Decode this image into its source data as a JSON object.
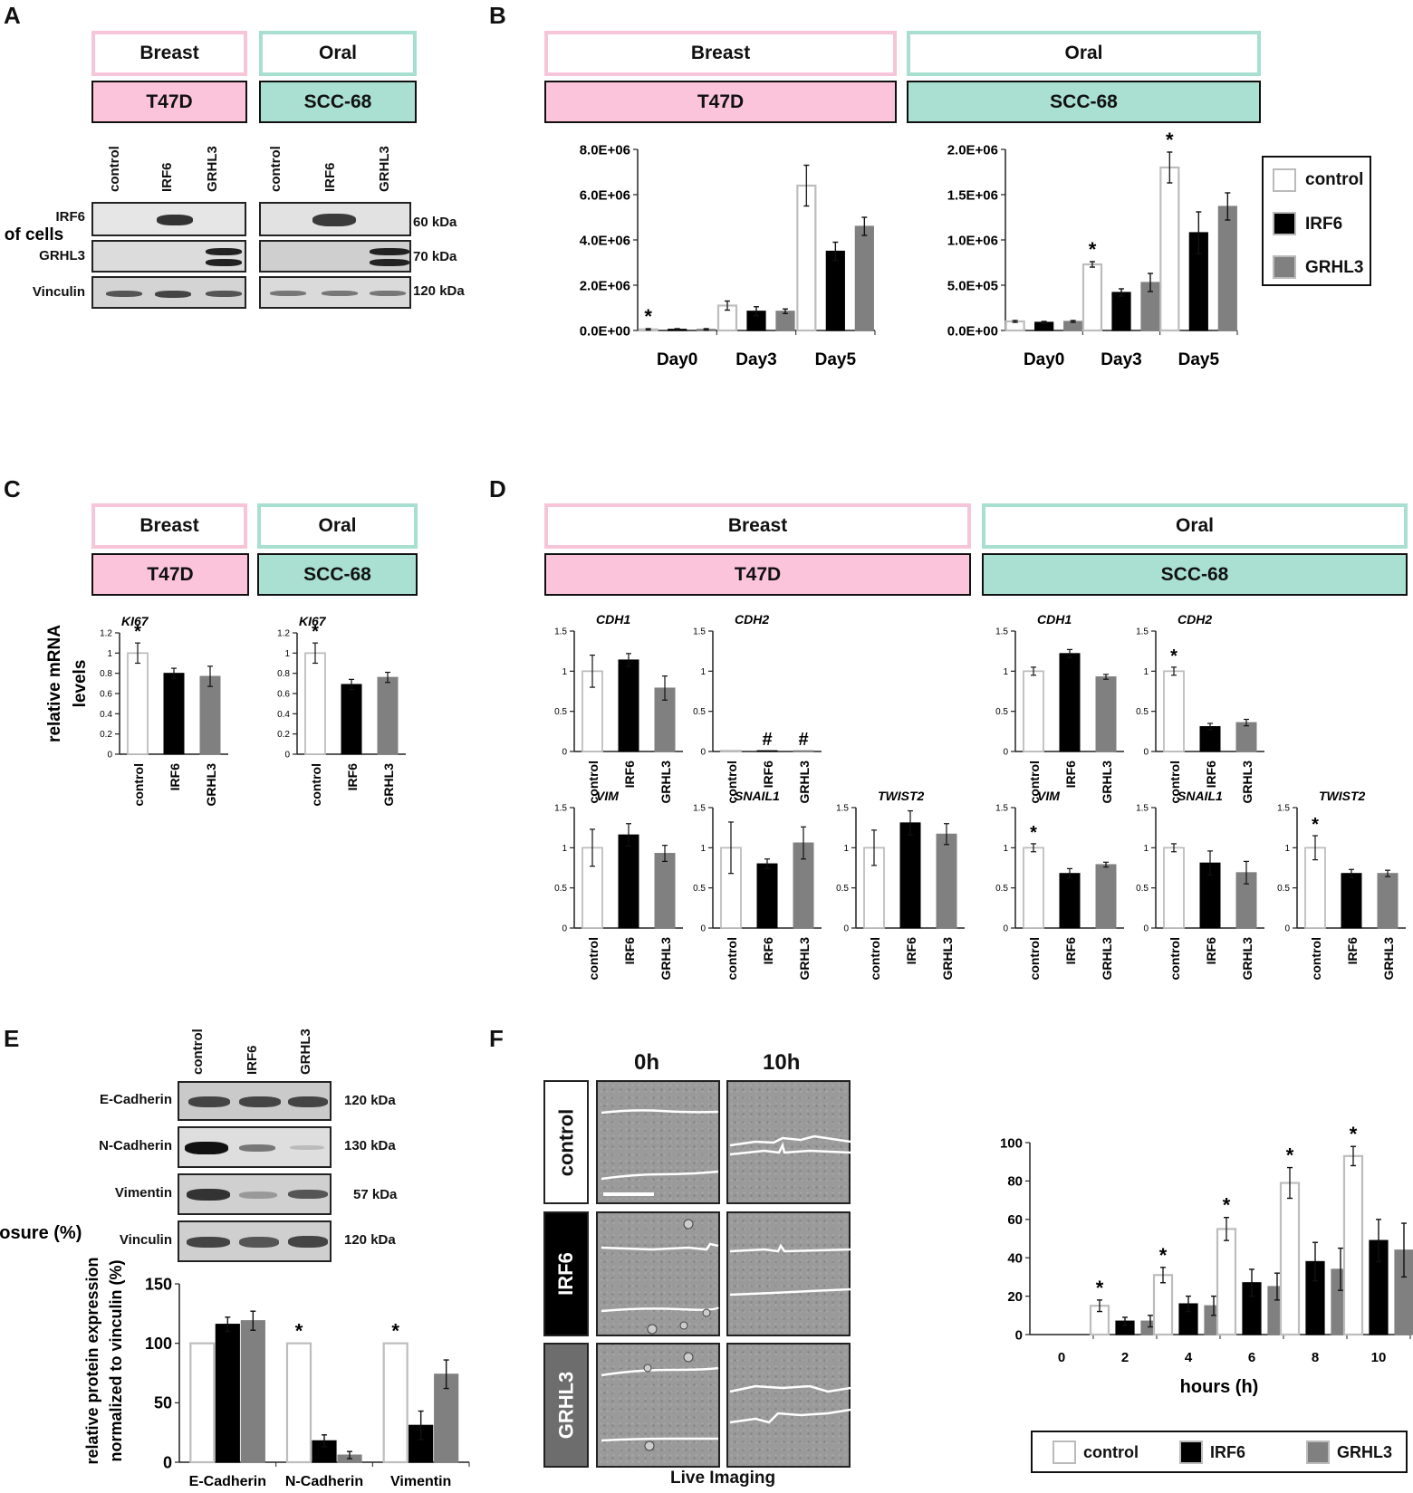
{
  "panels": {
    "A": "A",
    "B": "B",
    "C": "C",
    "D": "D",
    "E": "E",
    "F": "F"
  },
  "groups": {
    "breast": "Breast",
    "oral": "Oral",
    "t47d": "T47D",
    "scc68": "SCC-68"
  },
  "conditions": [
    "control",
    "IRF6",
    "GRHL3"
  ],
  "colors": {
    "control": "#ffffff",
    "IRF6": "#000000",
    "GRHL3": "#808080",
    "pink": "#fbc4da",
    "teal": "#a9e0d1"
  },
  "blotA": {
    "rows": [
      "IRF6",
      "GRHL3",
      "Vinculin"
    ],
    "kda": [
      "60 kDa",
      "70 kDa",
      "120 kDa"
    ]
  },
  "blotE": {
    "rows": [
      "E-Cadherin",
      "N-Cadherin",
      "Vimentin",
      "Vinculin"
    ],
    "kda": [
      "120 kDa",
      "130 kDa",
      "57 kDa",
      "120 kDa"
    ]
  },
  "legend": {
    "control": "control",
    "IRF6": "IRF6",
    "GRHL3": "GRHL3"
  },
  "panelF": {
    "t0": "0h",
    "t10": "10h",
    "caption": "Live Imaging"
  },
  "chart_data": [
    {
      "id": "B-breast",
      "type": "bar",
      "categories": [
        "Day0",
        "Day3",
        "Day5"
      ],
      "ylabel": "number of cells",
      "ylim": [
        0,
        8000000
      ],
      "yticks": [
        "0.0E+00",
        "2.0E+06",
        "4.0E+06",
        "6.0E+06",
        "8.0E+06"
      ],
      "series": [
        {
          "name": "control",
          "values": [
            50000,
            1100000,
            6400000
          ],
          "err": [
            30000,
            200000,
            900000
          ]
        },
        {
          "name": "IRF6",
          "values": [
            50000,
            850000,
            3500000
          ],
          "err": [
            30000,
            200000,
            400000
          ]
        },
        {
          "name": "GRHL3",
          "values": [
            50000,
            850000,
            4600000
          ],
          "err": [
            30000,
            100000,
            400000
          ]
        }
      ],
      "annotations": [
        "*",
        "",
        ""
      ]
    },
    {
      "id": "B-oral",
      "type": "bar",
      "categories": [
        "Day0",
        "Day3",
        "Day5"
      ],
      "ylim": [
        0,
        2000000
      ],
      "yticks": [
        "0.0E+00",
        "5.0E+05",
        "1.0E+06",
        "1.5E+06",
        "2.0E+06"
      ],
      "series": [
        {
          "name": "control",
          "values": [
            100000,
            730000,
            1800000
          ],
          "err": [
            10000,
            30000,
            170000
          ]
        },
        {
          "name": "IRF6",
          "values": [
            90000,
            420000,
            1080000
          ],
          "err": [
            10000,
            40000,
            230000
          ]
        },
        {
          "name": "GRHL3",
          "values": [
            100000,
            530000,
            1370000
          ],
          "err": [
            10000,
            100000,
            150000
          ]
        }
      ],
      "annotations": [
        "",
        "*",
        "*"
      ]
    },
    {
      "id": "C-breast",
      "type": "bar",
      "title": "KI67",
      "ylabel": "relative mRNA levels",
      "ylim": [
        0,
        1.2
      ],
      "yticks": [
        "0",
        "0.2",
        "0.4",
        "0.6",
        "0.8",
        "1",
        "1.2"
      ],
      "categories": [
        "control",
        "IRF6",
        "GRHL3"
      ],
      "values": [
        1.0,
        0.8,
        0.77
      ],
      "err": [
        0.1,
        0.05,
        0.1
      ],
      "annotations": [
        "*",
        "",
        ""
      ]
    },
    {
      "id": "C-oral",
      "type": "bar",
      "title": "KI67",
      "ylim": [
        0,
        1.2
      ],
      "yticks": [
        "0",
        "0.2",
        "0.4",
        "0.6",
        "0.8",
        "1",
        "1.2"
      ],
      "categories": [
        "control",
        "IRF6",
        "GRHL3"
      ],
      "values": [
        1.0,
        0.69,
        0.76
      ],
      "err": [
        0.1,
        0.05,
        0.05
      ],
      "annotations": [
        "*",
        "",
        ""
      ]
    },
    {
      "id": "D-breast-CDH1",
      "type": "bar",
      "title": "CDH1",
      "ylim": [
        0,
        1.5
      ],
      "yticks": [
        "0",
        "0.5",
        "1",
        "1.5"
      ],
      "categories": [
        "control",
        "IRF6",
        "GRHL3"
      ],
      "values": [
        1.0,
        1.14,
        0.79
      ],
      "err": [
        0.2,
        0.08,
        0.15
      ],
      "annotations": [
        "",
        "",
        ""
      ]
    },
    {
      "id": "D-breast-CDH2",
      "type": "bar",
      "title": "CDH2",
      "ylim": [
        0,
        1.5
      ],
      "yticks": [
        "0",
        "0.5",
        "1",
        "1.5"
      ],
      "categories": [
        "control",
        "IRF6",
        "GRHL3"
      ],
      "values": [
        0.01,
        0.01,
        0.01
      ],
      "err": [
        0,
        0,
        0
      ],
      "annotations": [
        "",
        "#",
        "#"
      ]
    },
    {
      "id": "D-oral-CDH1",
      "type": "bar",
      "title": "CDH1",
      "ylim": [
        0,
        1.5
      ],
      "yticks": [
        "0",
        "0.5",
        "1",
        "1.5"
      ],
      "categories": [
        "control",
        "IRF6",
        "GRHL3"
      ],
      "values": [
        1.0,
        1.22,
        0.93
      ],
      "err": [
        0.05,
        0.05,
        0.03
      ],
      "annotations": [
        "",
        "",
        ""
      ]
    },
    {
      "id": "D-oral-CDH2",
      "type": "bar",
      "title": "CDH2",
      "ylim": [
        0,
        1.5
      ],
      "yticks": [
        "0",
        "0.5",
        "1",
        "1.5"
      ],
      "categories": [
        "control",
        "IRF6",
        "GRHL3"
      ],
      "values": [
        1.0,
        0.31,
        0.36
      ],
      "err": [
        0.05,
        0.04,
        0.04
      ],
      "annotations": [
        "*",
        "",
        ""
      ]
    },
    {
      "id": "D-breast-VIM",
      "type": "bar",
      "title": "VIM",
      "ylim": [
        0,
        1.5
      ],
      "yticks": [
        "0",
        "0.5",
        "1",
        "1.5"
      ],
      "categories": [
        "control",
        "IRF6",
        "GRHL3"
      ],
      "values": [
        1.0,
        1.16,
        0.93
      ],
      "err": [
        0.23,
        0.14,
        0.1
      ],
      "annotations": [
        "",
        "",
        ""
      ]
    },
    {
      "id": "D-breast-SNAIL1",
      "type": "bar",
      "title": "SNAIL1",
      "ylim": [
        0,
        1.5
      ],
      "yticks": [
        "0",
        "0.5",
        "1",
        "1.5"
      ],
      "categories": [
        "control",
        "IRF6",
        "GRHL3"
      ],
      "values": [
        1.0,
        0.8,
        1.06
      ],
      "err": [
        0.32,
        0.06,
        0.2
      ],
      "annotations": [
        "",
        "",
        ""
      ]
    },
    {
      "id": "D-breast-TWIST2",
      "type": "bar",
      "title": "TWIST2",
      "ylim": [
        0,
        1.5
      ],
      "yticks": [
        "0",
        "0.5",
        "1",
        "1.5"
      ],
      "categories": [
        "control",
        "IRF6",
        "GRHL3"
      ],
      "values": [
        1.0,
        1.31,
        1.17
      ],
      "err": [
        0.22,
        0.15,
        0.13
      ],
      "annotations": [
        "",
        "",
        ""
      ]
    },
    {
      "id": "D-oral-VIM",
      "type": "bar",
      "title": "VIM",
      "ylim": [
        0,
        1.5
      ],
      "yticks": [
        "0",
        "0.5",
        "1",
        "1.5"
      ],
      "categories": [
        "control",
        "IRF6",
        "GRHL3"
      ],
      "values": [
        1.0,
        0.68,
        0.79
      ],
      "err": [
        0.05,
        0.06,
        0.03
      ],
      "annotations": [
        "*",
        "",
        ""
      ]
    },
    {
      "id": "D-oral-SNAIL1",
      "type": "bar",
      "title": "SNAIL1",
      "ylim": [
        0,
        1.5
      ],
      "yticks": [
        "0",
        "0.5",
        "1",
        "1.5"
      ],
      "categories": [
        "control",
        "IRF6",
        "GRHL3"
      ],
      "values": [
        1.0,
        0.81,
        0.69
      ],
      "err": [
        0.05,
        0.15,
        0.14
      ],
      "annotations": [
        "",
        "",
        ""
      ]
    },
    {
      "id": "D-oral-TWIST2",
      "type": "bar",
      "title": "TWIST2",
      "ylim": [
        0,
        1.5
      ],
      "yticks": [
        "0",
        "0.5",
        "1",
        "1.5"
      ],
      "categories": [
        "control",
        "IRF6",
        "GRHL3"
      ],
      "values": [
        1.0,
        0.68,
        0.68
      ],
      "err": [
        0.15,
        0.05,
        0.04
      ],
      "annotations": [
        "*",
        "",
        ""
      ]
    },
    {
      "id": "E-quant",
      "type": "bar",
      "ylabel": "relative protein expression normalized to vinculin (%)",
      "ylim": [
        0,
        150
      ],
      "yticks": [
        "0",
        "50",
        "100",
        "150"
      ],
      "categories": [
        "E-Cadherin",
        "N-Cadherin",
        "Vimentin"
      ],
      "series": [
        {
          "name": "control",
          "values": [
            100,
            100,
            100
          ],
          "err": [
            0,
            0,
            0
          ]
        },
        {
          "name": "IRF6",
          "values": [
            116,
            18,
            31
          ],
          "err": [
            6,
            5,
            12
          ]
        },
        {
          "name": "GRHL3",
          "values": [
            119,
            6,
            74
          ],
          "err": [
            8,
            3,
            12
          ]
        }
      ],
      "annotations": [
        "",
        "*",
        "*"
      ]
    },
    {
      "id": "F-wound",
      "type": "bar",
      "xlabel": "hours (h)",
      "ylabel": "Wound closure (%)",
      "ylim": [
        0,
        100
      ],
      "yticks": [
        "0",
        "20",
        "40",
        "60",
        "80",
        "100"
      ],
      "categories": [
        "0",
        "2",
        "4",
        "6",
        "8",
        "10"
      ],
      "series": [
        {
          "name": "control",
          "values": [
            0,
            15,
            31,
            55,
            79,
            93
          ],
          "err": [
            0,
            3,
            4,
            6,
            8,
            5
          ]
        },
        {
          "name": "IRF6",
          "values": [
            0,
            7,
            16,
            27,
            38,
            49
          ],
          "err": [
            0,
            2,
            4,
            7,
            10,
            11
          ]
        },
        {
          "name": "GRHL3",
          "values": [
            0,
            7,
            15,
            25,
            34,
            44
          ],
          "err": [
            0,
            3,
            5,
            7,
            11,
            14
          ]
        }
      ],
      "annotations": [
        "",
        "*",
        "*",
        "*",
        "*",
        "*"
      ]
    }
  ]
}
